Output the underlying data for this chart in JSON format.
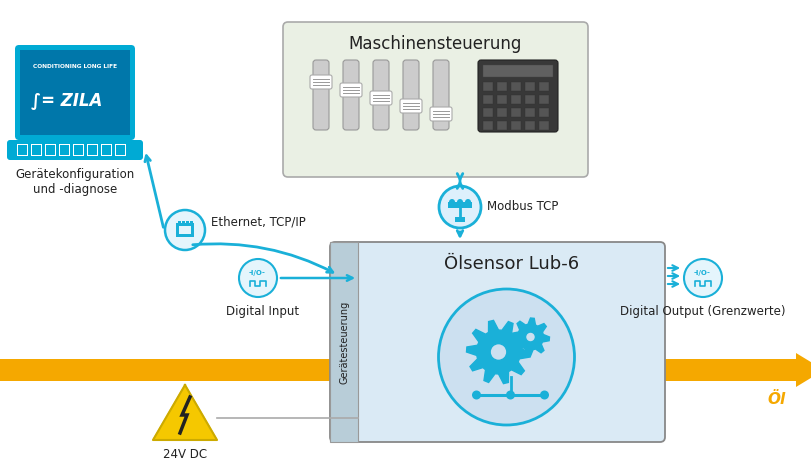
{
  "bg_color": "#ffffff",
  "laptop_color": "#00aad4",
  "laptop_dark": "#0077aa",
  "maschinen_box_color": "#eaf0e4",
  "maschinen_box_edge": "#aaaaaa",
  "sensor_box_color": "#daeaf5",
  "sensor_box_edge": "#888888",
  "geraete_strip_color": "#b8cdd8",
  "oil_color": "#f5a800",
  "arrow_color": "#1ab0d8",
  "text_color": "#222222",
  "oil_text_color": "#f5a800",
  "label_geraetekonfiguration": "Gerätekonfiguration\nund -diagnose",
  "label_maschinensteuerung": "Maschinensteuerung",
  "label_oelsensor": "Ölsensor Lub-6",
  "label_ethernet": "Ethernet, TCP/IP",
  "label_modbus": "Modbus TCP",
  "label_digital_input": "Digital Input",
  "label_digital_output": "Digital Output (Grenzwerte)",
  "label_24v": "24V DC",
  "label_oel": "Öl",
  "label_geraetesteuerung": "Gerätesteuerung",
  "figsize": [
    8.11,
    4.69
  ],
  "dpi": 100
}
